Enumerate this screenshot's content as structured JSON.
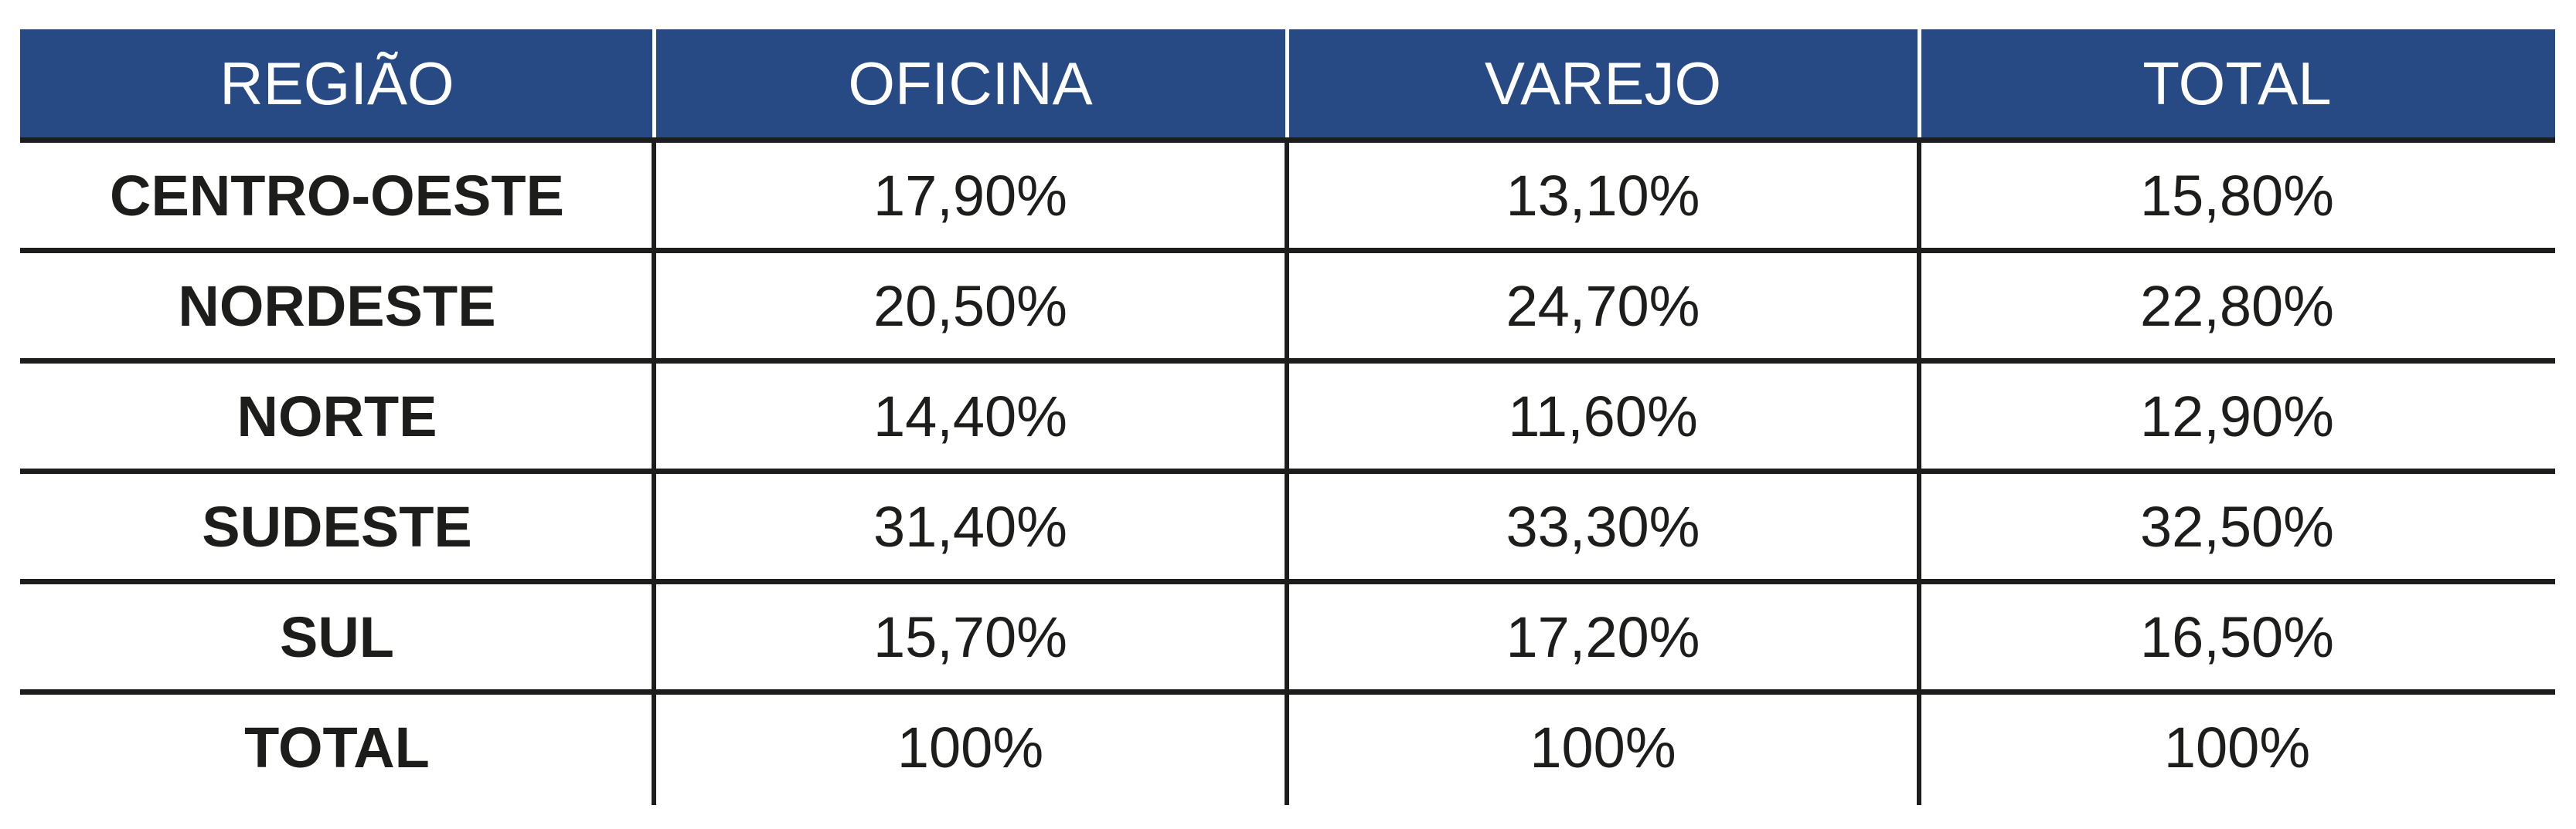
{
  "colors": {
    "header_bg": "#274a85",
    "header_text": "#ffffff",
    "body_text": "#1d1d1b",
    "rule": "#1d1d1b"
  },
  "table": {
    "headers": [
      "REGIÃO",
      "OFICINA",
      "VAREJO",
      "TOTAL"
    ],
    "rows": [
      [
        "CENTRO-OESTE",
        "17,90%",
        "13,10%",
        "15,80%"
      ],
      [
        "NORDESTE",
        "20,50%",
        "24,70%",
        "22,80%"
      ],
      [
        "NORTE",
        "14,40%",
        "11,60%",
        "12,90%"
      ],
      [
        "SUDESTE",
        "31,40%",
        "33,30%",
        "32,50%"
      ],
      [
        "SUL",
        "15,70%",
        "17,20%",
        "16,50%"
      ],
      [
        "TOTAL",
        "100%",
        "100%",
        "100%"
      ]
    ]
  }
}
